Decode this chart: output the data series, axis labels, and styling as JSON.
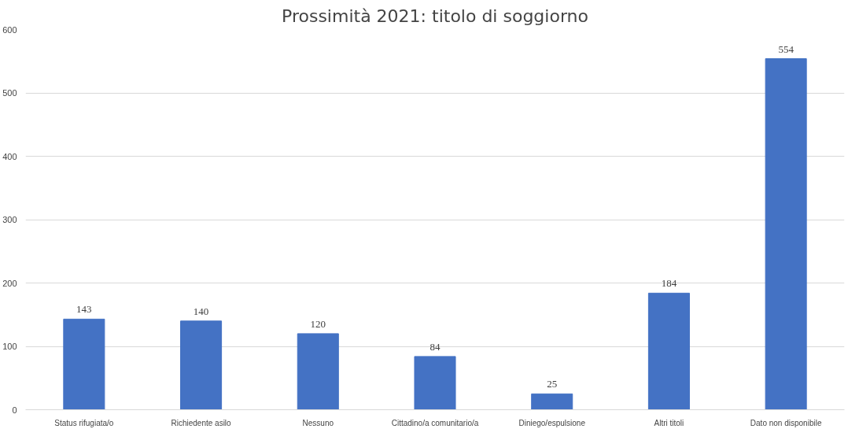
{
  "chart_data": {
    "type": "bar",
    "title": "Prossimità 2021: titolo di soggiorno",
    "categories": [
      "Status rifugiata/o",
      "Richiedente asilo",
      "Nessuno",
      "Cittadino/a comunitario/a",
      "Diniego/espulsione",
      "Altri titoli",
      "Dato non disponibile"
    ],
    "values": [
      143,
      140,
      120,
      84,
      25,
      184,
      554
    ],
    "color": "#4472c4",
    "ylim": [
      0,
      600
    ],
    "yticks": [
      0,
      100,
      200,
      300,
      400,
      500,
      600
    ],
    "grid": "y",
    "data_labels": true
  }
}
